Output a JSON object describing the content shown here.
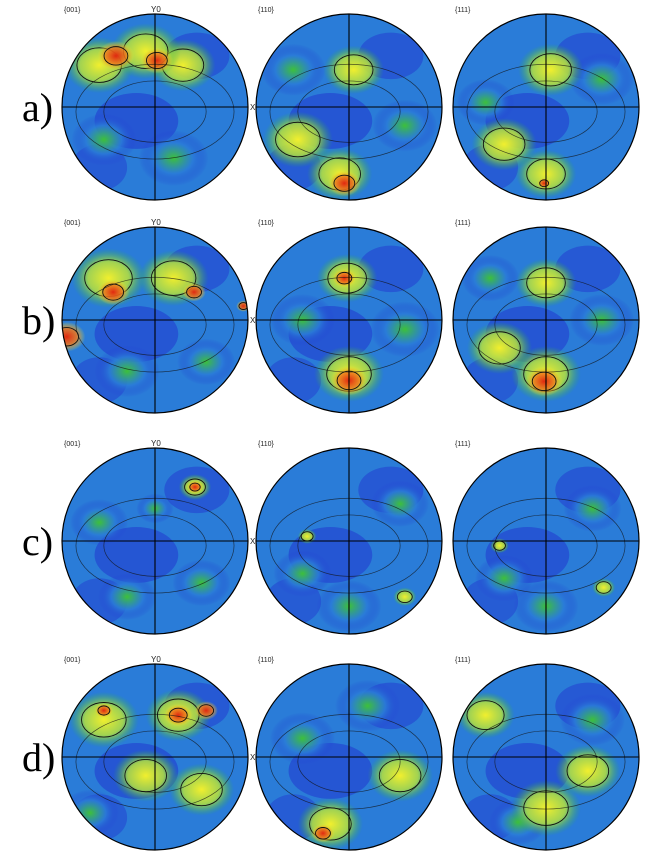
{
  "rows": [
    {
      "label": "a)",
      "figures": [
        {
          "title": "{001}",
          "y_axis": "Y0",
          "x_axis": "X0",
          "spots": [
            [
              -0.42,
              -0.55,
              0.16,
              "red"
            ],
            [
              0.02,
              -0.5,
              0.14,
              "red"
            ],
            [
              -0.6,
              -0.45,
              0.3,
              "yellow"
            ],
            [
              0.3,
              -0.45,
              0.28,
              "yellow"
            ],
            [
              -0.1,
              -0.6,
              0.3,
              "yellow"
            ],
            [
              0.2,
              0.55,
              0.3,
              "green"
            ],
            [
              -0.55,
              0.35,
              0.28,
              "green"
            ]
          ]
        },
        {
          "title": "{110}",
          "spots": [
            [
              -0.05,
              0.82,
              0.14,
              "red"
            ],
            [
              -0.1,
              0.72,
              0.28,
              "yellow"
            ],
            [
              0.05,
              -0.4,
              0.26,
              "yellow"
            ],
            [
              -0.55,
              0.35,
              0.3,
              "yellow"
            ],
            [
              0.6,
              0.2,
              0.28,
              "green"
            ],
            [
              -0.6,
              -0.4,
              0.28,
              "green"
            ]
          ]
        },
        {
          "title": "{111}",
          "spots": [
            [
              -0.02,
              0.82,
              0.06,
              "red"
            ],
            [
              0.0,
              0.72,
              0.26,
              "yellow"
            ],
            [
              0.05,
              -0.4,
              0.28,
              "yellow"
            ],
            [
              -0.45,
              0.4,
              0.28,
              "yellow"
            ],
            [
              0.6,
              -0.3,
              0.28,
              "green"
            ],
            [
              -0.65,
              -0.05,
              0.25,
              "green"
            ]
          ]
        }
      ]
    },
    {
      "label": "b)",
      "figures": [
        {
          "title": "{001}",
          "y_axis": "Y0",
          "x_axis": "X0",
          "spots": [
            [
              -0.45,
              -0.3,
              0.14,
              "red"
            ],
            [
              0.42,
              -0.3,
              0.1,
              "red"
            ],
            [
              -0.95,
              0.18,
              0.16,
              "red"
            ],
            [
              0.95,
              -0.15,
              0.06,
              "red"
            ],
            [
              -0.5,
              -0.45,
              0.32,
              "yellow"
            ],
            [
              0.2,
              -0.45,
              0.3,
              "yellow"
            ],
            [
              -0.3,
              0.55,
              0.28,
              "green"
            ],
            [
              0.55,
              0.45,
              0.25,
              "green"
            ]
          ]
        },
        {
          "title": "{110}",
          "spots": [
            [
              0.0,
              0.65,
              0.16,
              "red"
            ],
            [
              -0.05,
              -0.45,
              0.1,
              "red"
            ],
            [
              0.0,
              0.58,
              0.3,
              "yellow"
            ],
            [
              -0.02,
              -0.45,
              0.26,
              "yellow"
            ],
            [
              -0.5,
              0.0,
              0.28,
              "green"
            ],
            [
              0.6,
              0.1,
              0.3,
              "green"
            ]
          ]
        },
        {
          "title": "{111}",
          "spots": [
            [
              -0.02,
              0.66,
              0.16,
              "red"
            ],
            [
              0.0,
              0.58,
              0.3,
              "yellow"
            ],
            [
              0.0,
              -0.4,
              0.26,
              "yellow"
            ],
            [
              -0.5,
              0.3,
              0.28,
              "yellow"
            ],
            [
              0.6,
              0.0,
              0.28,
              "green"
            ],
            [
              -0.6,
              -0.45,
              0.25,
              "green"
            ]
          ]
        }
      ]
    },
    {
      "label": "c)",
      "figures": [
        {
          "title": "{001}",
          "y_axis": "Y0",
          "x_axis": "X0",
          "spots": [
            [
              0.43,
              -0.58,
              0.07,
              "red"
            ],
            [
              0.43,
              -0.58,
              0.14,
              "yellow"
            ],
            [
              0.0,
              -0.35,
              0.16,
              "green"
            ],
            [
              -0.6,
              -0.2,
              0.25,
              "green"
            ],
            [
              0.5,
              0.45,
              0.25,
              "green"
            ],
            [
              -0.3,
              0.6,
              0.25,
              "green"
            ]
          ]
        },
        {
          "title": "{110}",
          "spots": [
            [
              0.6,
              0.6,
              0.1,
              "yellow"
            ],
            [
              -0.45,
              -0.05,
              0.08,
              "yellow"
            ],
            [
              0.0,
              0.7,
              0.28,
              "green"
            ],
            [
              0.55,
              -0.4,
              0.25,
              "green"
            ],
            [
              -0.5,
              0.35,
              0.25,
              "green"
            ]
          ]
        },
        {
          "title": "{111}",
          "spots": [
            [
              0.62,
              0.5,
              0.1,
              "yellow"
            ],
            [
              -0.5,
              0.05,
              0.08,
              "yellow"
            ],
            [
              0.0,
              0.7,
              0.28,
              "green"
            ],
            [
              0.5,
              -0.35,
              0.25,
              "green"
            ],
            [
              -0.45,
              0.4,
              0.25,
              "green"
            ]
          ]
        }
      ]
    },
    {
      "label": "d)",
      "figures": [
        {
          "title": "{001}",
          "y_axis": "Y0",
          "x_axis": "X0",
          "spots": [
            [
              0.25,
              -0.45,
              0.12,
              "red"
            ],
            [
              0.55,
              -0.5,
              0.1,
              "red"
            ],
            [
              -0.55,
              -0.5,
              0.08,
              "red"
            ],
            [
              0.25,
              -0.45,
              0.28,
              "yellow"
            ],
            [
              -0.55,
              -0.4,
              0.3,
              "yellow"
            ],
            [
              -0.1,
              0.2,
              0.28,
              "yellow"
            ],
            [
              0.5,
              0.35,
              0.28,
              "yellow"
            ],
            [
              -0.7,
              0.6,
              0.25,
              "green"
            ]
          ]
        },
        {
          "title": "{110}",
          "spots": [
            [
              -0.28,
              0.82,
              0.1,
              "red"
            ],
            [
              -0.2,
              0.72,
              0.28,
              "yellow"
            ],
            [
              0.55,
              0.2,
              0.28,
              "yellow"
            ],
            [
              -0.5,
              -0.2,
              0.28,
              "green"
            ],
            [
              0.2,
              -0.55,
              0.28,
              "green"
            ]
          ]
        },
        {
          "title": "{111}",
          "spots": [
            [
              -0.65,
              -0.45,
              0.25,
              "yellow"
            ],
            [
              0.45,
              0.15,
              0.28,
              "yellow"
            ],
            [
              0.0,
              0.55,
              0.3,
              "yellow"
            ],
            [
              0.5,
              -0.4,
              0.28,
              "green"
            ],
            [
              -0.3,
              0.7,
              0.25,
              "green"
            ]
          ]
        }
      ]
    }
  ],
  "colors": {
    "background": "#2136d0",
    "low": "#2a7cd8",
    "mid": "#2fb53c",
    "yellow": "#f1ef2e",
    "red": "#e02810",
    "green": "#3dc03a",
    "contour": "#111111",
    "axis": "#000000"
  }
}
